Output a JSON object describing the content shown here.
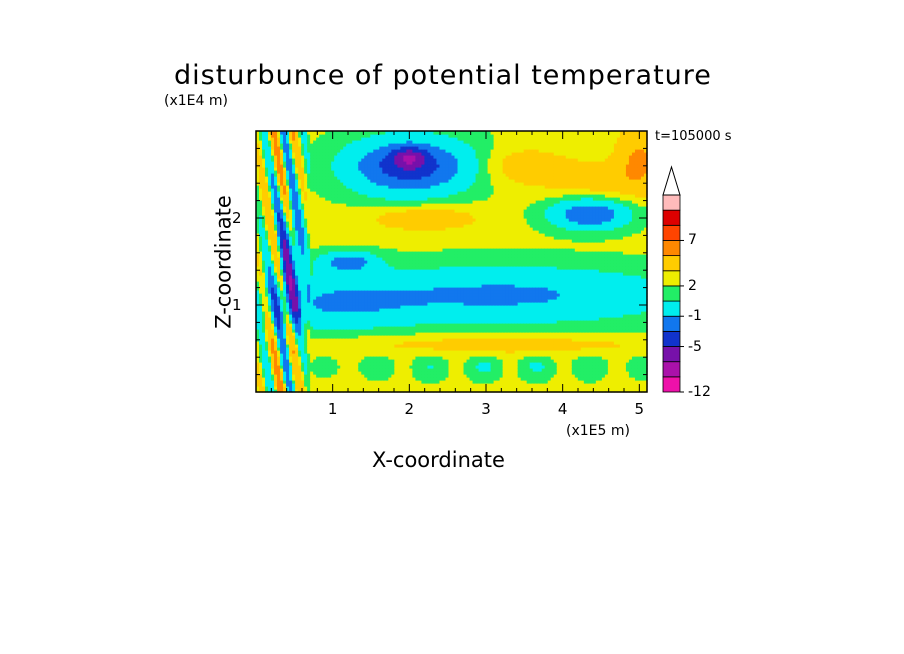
{
  "chart_data": {
    "type": "heatmap",
    "title": "disturbunce of potential temperature",
    "xlabel": "X-coordinate",
    "ylabel": "Z-coordinate",
    "x_unit": "(x1E5 m)",
    "y_unit": "(x1E4 m)",
    "annotation": "t=105000 s",
    "xlim": [
      0,
      5.1
    ],
    "ylim": [
      0,
      3.0
    ],
    "x_ticks": [
      "1",
      "2",
      "3",
      "4",
      "5"
    ],
    "x_tick_values": [
      1,
      2,
      3,
      4,
      5
    ],
    "y_ticks": [
      "1",
      "2"
    ],
    "y_tick_values": [
      1,
      2
    ],
    "colorbar": {
      "levels": [
        -12,
        -9,
        -7,
        -5,
        -3,
        -1,
        1,
        2,
        3,
        5,
        7,
        9,
        12
      ],
      "labels": [
        "-12",
        "-5",
        "-1",
        "2",
        "7"
      ],
      "label_values": [
        -12,
        -5,
        -1,
        2,
        7
      ],
      "colors": [
        "#ee11aa",
        "#aa11aa",
        "#7711aa",
        "#1133cc",
        "#1177ee",
        "#00eeee",
        "#22ee66",
        "#eeee00",
        "#ffcc00",
        "#ff8800",
        "#ff4400",
        "#dd0000",
        "#ffbbbb"
      ],
      "extend_max": true
    },
    "grid": false
  }
}
